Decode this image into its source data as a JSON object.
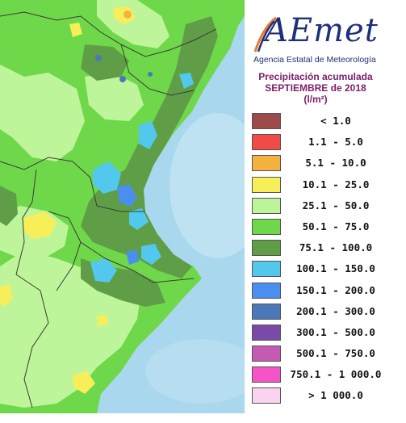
{
  "header": {
    "logo_text": "AEmet",
    "agency": "Agencia Estatal de Meteorología",
    "title_line1": "Precipitación acumulada",
    "title_line2": "SEPTIEMBRE de 2018",
    "units": "(l/m²)"
  },
  "legend": [
    {
      "label": "< 1.0",
      "color": "#9c4a4a"
    },
    {
      "label": "1.1 - 5.0",
      "color": "#f24b45"
    },
    {
      "label": "5.1 - 10.0",
      "color": "#f5b240"
    },
    {
      "label": "10.1 - 25.0",
      "color": "#f7ee5a"
    },
    {
      "label": "25.1 - 50.0",
      "color": "#bff59a"
    },
    {
      "label": "50.1 - 75.0",
      "color": "#6fd84a"
    },
    {
      "label": "75.1 - 100.0",
      "color": "#5f9e46"
    },
    {
      "label": "100.1 - 150.0",
      "color": "#52c8ee"
    },
    {
      "label": "150.1 - 200.0",
      "color": "#4a8ff0"
    },
    {
      "label": "200.1 - 300.0",
      "color": "#4a78b8"
    },
    {
      "label": "300.1 - 500.0",
      "color": "#7a4aa8"
    },
    {
      "label": "500.1 - 750.0",
      "color": "#c45ab4"
    },
    {
      "label": "750.1 - 1 000.0",
      "color": "#f553c8"
    },
    {
      "label": "> 1 000.0",
      "color": "#fad4ee"
    }
  ],
  "colors": {
    "sea": "#a9d7ee",
    "logo_blue": "#1f2f7a",
    "title_purple": "#7a1f6a"
  }
}
